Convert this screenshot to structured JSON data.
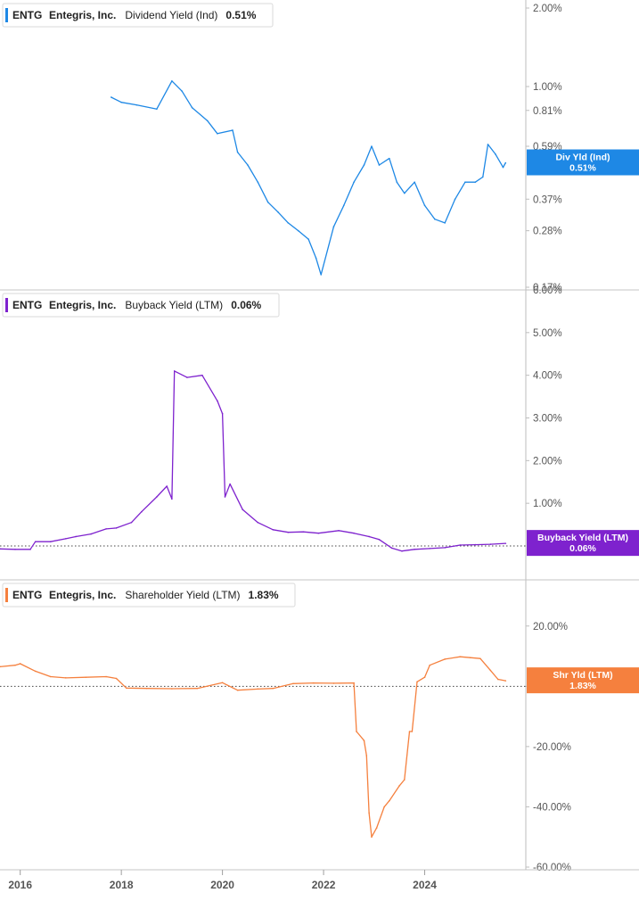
{
  "chart_data": [
    {
      "type": "line",
      "ticker": "ENTG",
      "company": "Entegris, Inc.",
      "metric": "Dividend Yield (Ind)",
      "current_label": "0.51%",
      "badge": {
        "line1": "Div Yld (Ind)",
        "line2": "0.51%"
      },
      "color": "#1e88e5",
      "y_scale": "log",
      "ylim": [
        0.17,
        2.0
      ],
      "y_ticks": [
        {
          "value": 2.0,
          "label": "2.00%"
        },
        {
          "value": 1.0,
          "label": "1.00%"
        },
        {
          "value": 0.81,
          "label": "0.81%"
        },
        {
          "value": 0.59,
          "label": "0.59%"
        },
        {
          "value": 0.37,
          "label": "0.37%"
        },
        {
          "value": 0.28,
          "label": "0.28%"
        },
        {
          "value": 0.17,
          "label": "0.17%"
        }
      ],
      "x": [
        2017.8,
        2018.0,
        2018.3,
        2018.7,
        2019.0,
        2019.2,
        2019.4,
        2019.7,
        2019.9,
        2020.2,
        2020.3,
        2020.5,
        2020.7,
        2020.9,
        2021.1,
        2021.3,
        2021.5,
        2021.7,
        2021.85,
        2021.95,
        2022.2,
        2022.4,
        2022.6,
        2022.8,
        2022.95,
        2023.1,
        2023.3,
        2023.45,
        2023.6,
        2023.8,
        2024.0,
        2024.2,
        2024.4,
        2024.6,
        2024.8,
        2025.0,
        2025.15,
        2025.25,
        2025.4,
        2025.55,
        2025.6
      ],
      "values": [
        0.91,
        0.87,
        0.85,
        0.82,
        1.05,
        0.96,
        0.83,
        0.74,
        0.66,
        0.68,
        0.56,
        0.5,
        0.43,
        0.36,
        0.33,
        0.3,
        0.28,
        0.26,
        0.22,
        0.19,
        0.29,
        0.35,
        0.43,
        0.5,
        0.59,
        0.5,
        0.53,
        0.43,
        0.39,
        0.43,
        0.35,
        0.31,
        0.3,
        0.37,
        0.43,
        0.43,
        0.45,
        0.6,
        0.55,
        0.49,
        0.51
      ]
    },
    {
      "type": "line",
      "ticker": "ENTG",
      "company": "Entegris, Inc.",
      "metric": "Buyback Yield (LTM)",
      "current_label": "0.06%",
      "badge": {
        "line1": "Buyback Yield (LTM)",
        "line2": "0.06%"
      },
      "color": "#7e22ce",
      "ylim": [
        0.0,
        6.0
      ],
      "y_ticks": [
        {
          "value": 6.0,
          "label": "6.00%"
        },
        {
          "value": 5.0,
          "label": "5.00%"
        },
        {
          "value": 4.0,
          "label": "4.00%"
        },
        {
          "value": 3.0,
          "label": "3.00%"
        },
        {
          "value": 2.0,
          "label": "2.00%"
        },
        {
          "value": 1.0,
          "label": "1.00%"
        }
      ],
      "zero_line": 0.0,
      "x": [
        2015.6,
        2015.9,
        2016.2,
        2016.3,
        2016.6,
        2016.9,
        2017.1,
        2017.4,
        2017.7,
        2017.9,
        2018.2,
        2018.4,
        2018.7,
        2018.9,
        2019.0,
        2019.05,
        2019.3,
        2019.6,
        2019.9,
        2020.0,
        2020.05,
        2020.15,
        2020.4,
        2020.7,
        2021.0,
        2021.3,
        2021.6,
        2021.9,
        2022.3,
        2022.6,
        2022.9,
        2023.1,
        2023.35,
        2023.55,
        2023.8,
        2024.1,
        2024.4,
        2024.7,
        2025.0,
        2025.3,
        2025.6
      ],
      "values": [
        -0.07,
        -0.08,
        -0.08,
        0.1,
        0.1,
        0.17,
        0.22,
        0.28,
        0.4,
        0.42,
        0.55,
        0.8,
        1.15,
        1.4,
        1.1,
        4.1,
        3.95,
        4.0,
        3.4,
        3.1,
        1.15,
        1.45,
        0.85,
        0.55,
        0.38,
        0.32,
        0.33,
        0.3,
        0.36,
        0.3,
        0.22,
        0.15,
        -0.05,
        -0.12,
        -0.08,
        -0.06,
        -0.04,
        0.02,
        0.03,
        0.04,
        0.06
      ]
    },
    {
      "type": "line",
      "ticker": "ENTG",
      "company": "Entegris, Inc.",
      "metric": "Shareholder Yield (LTM)",
      "current_label": "1.83%",
      "badge": {
        "line1": "Shr Yld (LTM)",
        "line2": "1.83%"
      },
      "color": "#f5803e",
      "ylim": [
        -60.0,
        22.0
      ],
      "y_ticks": [
        {
          "value": 20.0,
          "label": "20.00%"
        },
        {
          "value": 0.0,
          "label": "0.00%"
        },
        {
          "value": -20.0,
          "label": "-20.00%"
        },
        {
          "value": -40.0,
          "label": "-40.00%"
        },
        {
          "value": -60.0,
          "label": "-60.00%"
        }
      ],
      "zero_line": 0.0,
      "x": [
        2015.6,
        2015.9,
        2016.0,
        2016.3,
        2016.6,
        2016.9,
        2017.3,
        2017.7,
        2017.9,
        2018.1,
        2018.5,
        2019.0,
        2019.5,
        2020.0,
        2020.3,
        2020.7,
        2021.0,
        2021.4,
        2021.8,
        2022.2,
        2022.6,
        2022.65,
        2022.8,
        2022.85,
        2022.9,
        2022.95,
        2023.05,
        2023.2,
        2023.3,
        2023.5,
        2023.6,
        2023.7,
        2023.75,
        2023.85,
        2024.0,
        2024.1,
        2024.4,
        2024.7,
        2024.9,
        2025.1,
        2025.3,
        2025.45,
        2025.6
      ],
      "values": [
        6.5,
        7.0,
        7.5,
        5.0,
        3.2,
        2.8,
        3.0,
        3.2,
        2.6,
        -0.6,
        -0.7,
        -0.8,
        -0.7,
        1.2,
        -1.3,
        -0.9,
        -0.7,
        0.9,
        1.1,
        1.0,
        1.1,
        -15.0,
        -18.0,
        -23.0,
        -42.0,
        -50.0,
        -47.0,
        -40.0,
        -38.0,
        -33.0,
        -31.0,
        -15.0,
        -15.0,
        1.5,
        3.0,
        7.0,
        9.0,
        9.8,
        9.5,
        9.2,
        5.3,
        2.3,
        1.83
      ]
    }
  ],
  "x_axis": {
    "range": [
      2015.6,
      2026.0
    ],
    "ticks": [
      {
        "value": 2016,
        "label": "2016"
      },
      {
        "value": 2018,
        "label": "2018"
      },
      {
        "value": 2020,
        "label": "2020"
      },
      {
        "value": 2022,
        "label": "2022"
      },
      {
        "value": 2024,
        "label": "2024"
      }
    ]
  }
}
